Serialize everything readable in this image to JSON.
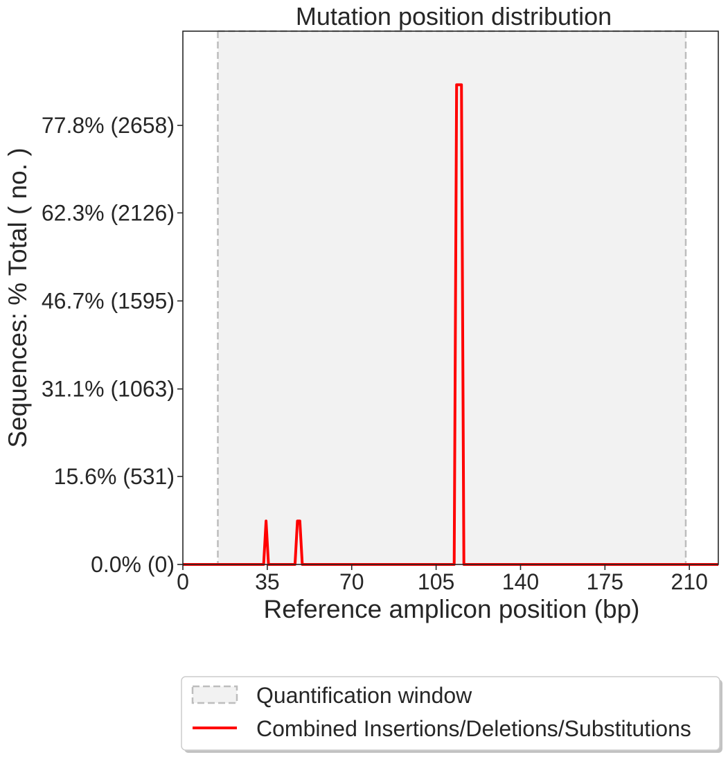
{
  "chart_data": {
    "type": "line",
    "title": "Mutation position distribution",
    "xlabel": "Reference amplicon position (bp)",
    "ylabel": "Sequences: % Total ( no. )",
    "xlim": [
      0,
      222
    ],
    "ylim": [
      0,
      94.5
    ],
    "x_ticks": [
      0,
      35,
      70,
      105,
      140,
      175,
      210
    ],
    "x_tick_labels": [
      "0",
      "35",
      "70",
      "105",
      "140",
      "175",
      "210"
    ],
    "y_ticks": [
      0,
      15.6,
      31.1,
      46.7,
      62.3,
      77.8
    ],
    "y_tick_labels": [
      "0.0% (0)",
      "15.6% (531)",
      "31.1% (1063)",
      "46.7% (1595)",
      "62.3% (2126)",
      "77.8% (2658)"
    ],
    "grid": false,
    "legend_position": "below",
    "quantification_window": {
      "name": "Quantification window",
      "start": 14.5,
      "end": 208.5,
      "fill_color": "#f2f2f2",
      "edge_color": "#bdbdbd"
    },
    "series": [
      {
        "name": "Combined Insertions/Deletions/Substitutions",
        "color": "#ff0000",
        "x": [
          0,
          33.5,
          34.5,
          35.5,
          46.5,
          47.5,
          48.5,
          49.5,
          112.5,
          113.5,
          115.5,
          116.5,
          222
        ],
        "y": [
          0,
          0,
          7.7,
          0,
          0,
          7.7,
          7.7,
          0,
          0,
          85.0,
          85.0,
          0,
          0
        ]
      }
    ]
  }
}
